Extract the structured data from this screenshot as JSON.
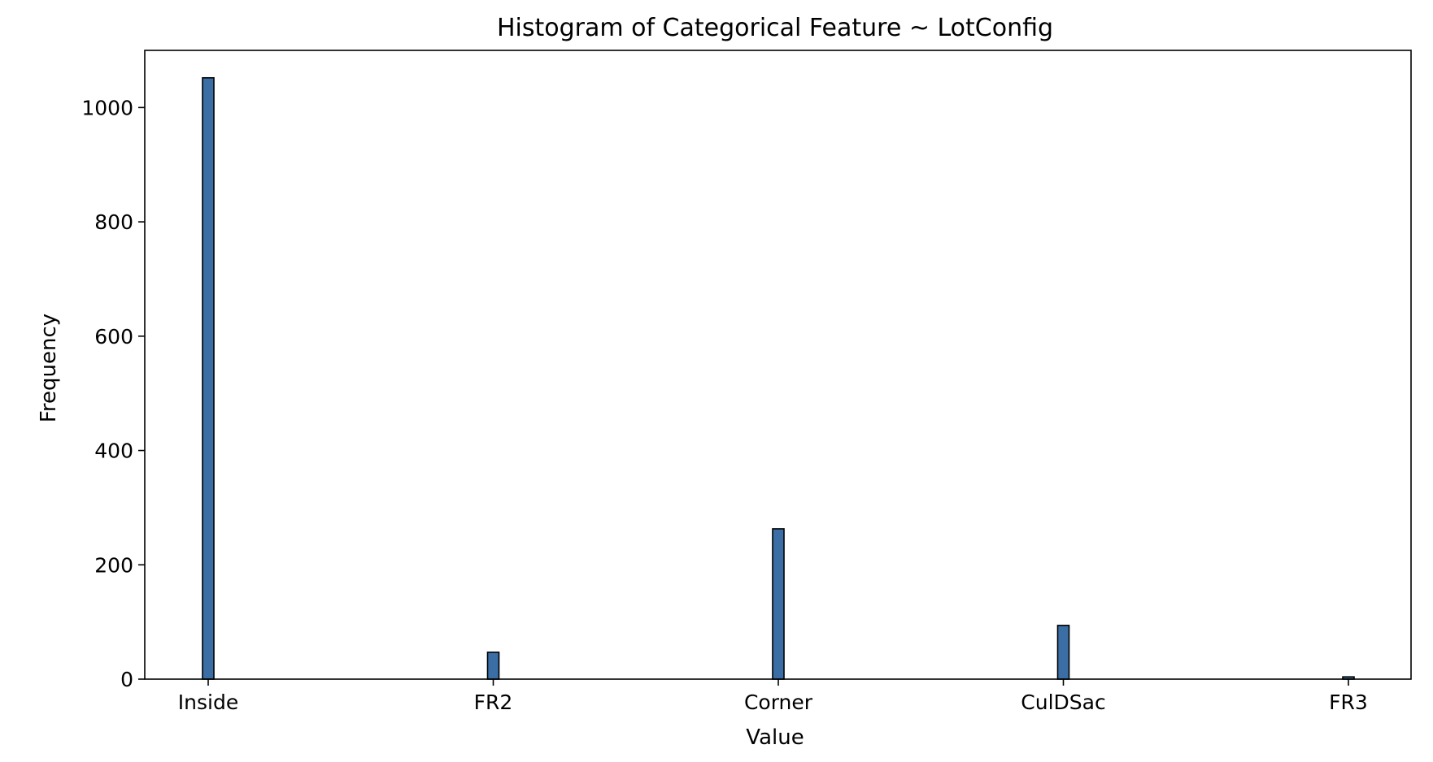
{
  "chart_data": {
    "type": "bar",
    "title": "Histogram of Categorical Feature ~ LotConfig",
    "xlabel": "Value",
    "ylabel": "Frequency",
    "categories": [
      "Inside",
      "FR2",
      "Corner",
      "CulDSac",
      "FR3"
    ],
    "values": [
      1052,
      47,
      263,
      94,
      4
    ],
    "ylim": [
      0,
      1100
    ],
    "yticks": [
      0,
      200,
      400,
      600,
      800,
      1000
    ],
    "grid": false,
    "legend": "none",
    "colors": {
      "bar_fill": "#3a6ea5",
      "bar_edge": "#000000",
      "axis": "#000000"
    }
  }
}
